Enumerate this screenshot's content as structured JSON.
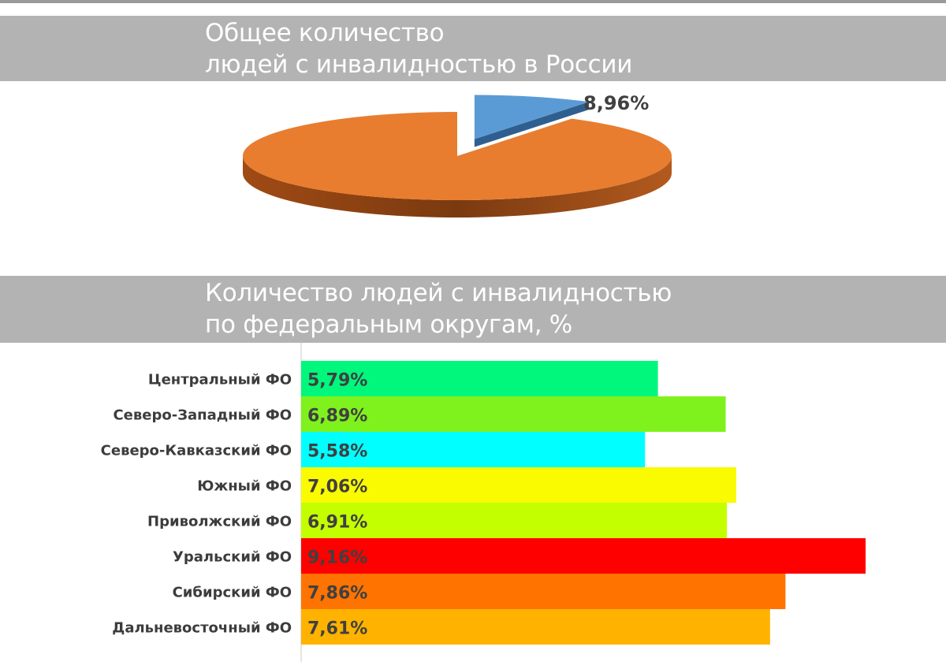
{
  "pie_section": {
    "title_line1": "Общее количество",
    "title_line2": "людей с инвалидностью  в России"
  },
  "bar_section": {
    "title_line1": "Количество людей с инвалидностью",
    "title_line2": "по федеральным округам, %"
  },
  "chart_data": [
    {
      "type": "pie",
      "title": "Общее количество людей с инвалидностью  в России",
      "slices": [
        {
          "label": "8,96%",
          "value": 8.96,
          "color": "#5b9bd5"
        },
        {
          "label": "",
          "value": 91.04,
          "color": "#e87d2f"
        }
      ]
    },
    {
      "type": "bar",
      "orientation": "horizontal",
      "title": "Количество людей с инвалидностью по федеральным округам, %",
      "categories": [
        "Центральный ФО",
        "Северо-Западный ФО",
        "Северо-Кавказский ФО",
        "Южный ФО",
        "Приволжский ФО",
        "Уральский ФО",
        "Сибирский ФО",
        "Дальневосточный ФО"
      ],
      "values": [
        5.79,
        6.89,
        5.58,
        7.06,
        6.91,
        9.16,
        7.86,
        7.61
      ],
      "value_labels": [
        "5,79%",
        "6,89%",
        "5,58%",
        "7,06%",
        "6,91%",
        "9,16%",
        "7,86%",
        "7,61%"
      ],
      "colors": [
        "#00f77c",
        "#7ff21d",
        "#00ffff",
        "#fafa00",
        "#c4ff00",
        "#ff0000",
        "#ff7300",
        "#ffb300"
      ],
      "xlim": [
        0,
        9.16
      ]
    }
  ]
}
